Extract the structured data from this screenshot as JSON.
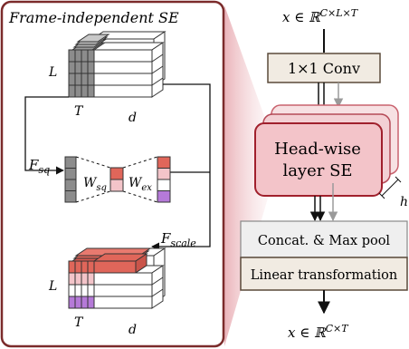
{
  "left_panel": {
    "title": "Frame-independent SE",
    "top_block": {
      "axis_l": "L",
      "axis_t": "T",
      "axis_d": "d"
    },
    "f_sq_label": "F",
    "f_sq_sub": "sq",
    "w_sq_label": "W",
    "w_sq_sub": "sq",
    "w_ex_label": "W",
    "w_ex_sub": "ex",
    "f_scale_label": "F",
    "f_scale_sub": "scale",
    "bottom_block": {
      "axis_l": "L",
      "axis_t": "T",
      "axis_d": "d"
    }
  },
  "right_panel": {
    "input_label": "x ∈ ℝ",
    "input_sup": "C×L×T",
    "conv_label": "1×1 Conv",
    "se_line1": "Head-wise",
    "se_line2": "layer SE",
    "h_label": "h",
    "concat_label": "Concat. & Max pool",
    "linear_label": "Linear transformation",
    "output_label": "x ∈ ℝ",
    "output_sup": "C×T"
  },
  "colors": {
    "panel_border": "#7b2b2b",
    "se_fill": "#f3c4c9",
    "se_border": "#a0202c",
    "conv_fill": "#f1ebe2",
    "concat_fill": "#efefef",
    "linear_fill": "#f1ebe2",
    "gray_stack": "#8c8c8c",
    "red_dark": "#e0665a",
    "red_light": "#f3c4c9",
    "purple": "#b57ad8"
  }
}
